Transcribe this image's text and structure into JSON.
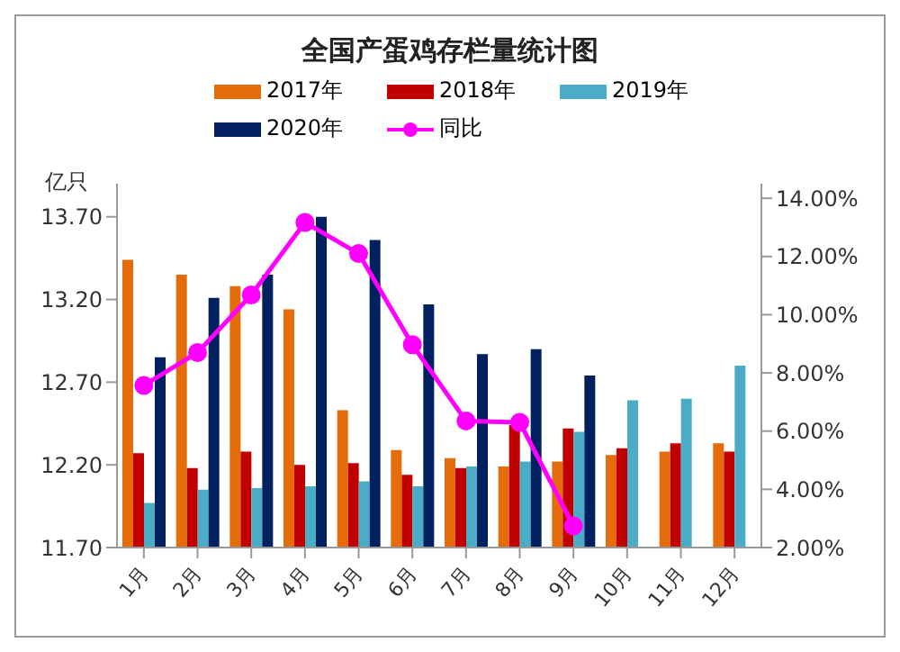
{
  "chart_data": {
    "type": "bar",
    "title": "全国产蛋鸡存栏量统计图",
    "ylabel": "亿只",
    "categories": [
      "1月",
      "2月",
      "3月",
      "4月",
      "5月",
      "6月",
      "7月",
      "8月",
      "9月",
      "10月",
      "11月",
      "12月"
    ],
    "series": [
      {
        "name": "2017年",
        "color": "#e46c0a",
        "values": [
          13.44,
          13.35,
          13.28,
          13.14,
          12.53,
          12.29,
          12.24,
          12.19,
          12.22,
          12.26,
          12.28,
          12.33
        ]
      },
      {
        "name": "2018年",
        "color": "#c00000",
        "values": [
          12.27,
          12.18,
          12.28,
          12.2,
          12.21,
          12.14,
          12.18,
          12.44,
          12.42,
          12.3,
          12.33,
          12.28
        ]
      },
      {
        "name": "2019年",
        "color": "#4bacc6",
        "values": [
          11.97,
          12.05,
          12.06,
          12.07,
          12.1,
          12.07,
          12.19,
          12.22,
          12.4,
          12.59,
          12.6,
          12.8
        ]
      },
      {
        "name": "2020年",
        "color": "#002060",
        "values": [
          12.85,
          13.21,
          13.35,
          13.7,
          13.56,
          13.17,
          12.87,
          12.9,
          12.74,
          null,
          null,
          null
        ]
      },
      {
        "name": "同比",
        "type": "line",
        "axis": "y2",
        "color": "#ff00ff",
        "values": [
          7.57,
          8.7,
          10.68,
          13.17,
          12.1,
          8.97,
          6.35,
          6.3,
          2.74,
          null,
          null,
          null
        ]
      }
    ],
    "ylim": [
      11.7,
      13.9
    ],
    "yticks": [
      {
        "value": 11.7,
        "label": "11.70"
      },
      {
        "value": 12.2,
        "label": "12.20"
      },
      {
        "value": 12.7,
        "label": "12.70"
      },
      {
        "value": 13.2,
        "label": "13.20"
      },
      {
        "value": 13.7,
        "label": "13.70"
      }
    ],
    "y2lim": [
      2,
      14.5
    ],
    "y2ticks": [
      {
        "value": 2,
        "label": "2.00%"
      },
      {
        "value": 4,
        "label": "4.00%"
      },
      {
        "value": 6,
        "label": "6.00%"
      },
      {
        "value": 8,
        "label": "8.00%"
      },
      {
        "value": 10,
        "label": "10.00%"
      },
      {
        "value": 12,
        "label": "12.00%"
      },
      {
        "value": 14,
        "label": "14.00%"
      }
    ],
    "legend": "top",
    "marker": "circle",
    "grid": false
  }
}
